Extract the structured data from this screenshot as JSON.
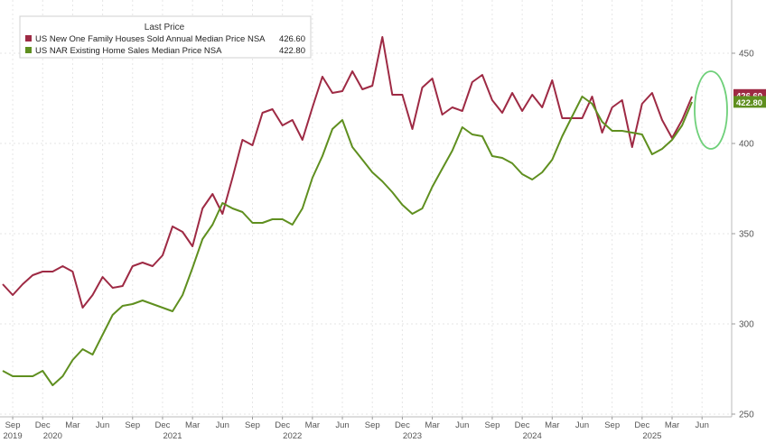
{
  "chart_data": {
    "type": "line",
    "legend": {
      "title": "Last Price",
      "position": "top-left",
      "entries": [
        {
          "label": "US New One Family Houses Sold Annual Median Price NSA",
          "value": "426.60",
          "color": "#9e2a44"
        },
        {
          "label": "US NAR Existing Home Sales Median Price NSA",
          "value": "422.80",
          "color": "#5f8f1f"
        }
      ]
    },
    "y_axis": {
      "ticks": [
        "450",
        "400",
        "350",
        "300",
        "250"
      ],
      "range": [
        250,
        475
      ]
    },
    "x_axis": {
      "month_labels": [
        "Sep",
        "Dec",
        "Mar",
        "Jun",
        "Sep",
        "Dec",
        "Mar",
        "Jun",
        "Sep",
        "Dec",
        "Mar",
        "Jun",
        "Sep",
        "Dec",
        "Mar",
        "Jun",
        "Sep",
        "Dec",
        "Mar",
        "Jun",
        "Sep",
        "Dec",
        "Mar",
        "Jun"
      ],
      "year_labels": [
        "2019",
        "2020",
        "2021",
        "2022",
        "2023",
        "2024",
        "2025"
      ]
    },
    "end_labels": [
      "426.60",
      "422.80"
    ],
    "grid": true,
    "highlight": "ellipse around latest values",
    "series": [
      {
        "name": "US New One Family Houses Sold Annual Median Price NSA",
        "color": "#9e2a44",
        "x": [
          "2019-08",
          "2019-09",
          "2019-10",
          "2019-11",
          "2019-12",
          "2020-01",
          "2020-02",
          "2020-03",
          "2020-04",
          "2020-05",
          "2020-06",
          "2020-07",
          "2020-08",
          "2020-09",
          "2020-10",
          "2020-11",
          "2020-12",
          "2021-01",
          "2021-02",
          "2021-03",
          "2021-04",
          "2021-05",
          "2021-06",
          "2021-07",
          "2021-08",
          "2021-09",
          "2021-10",
          "2021-11",
          "2021-12",
          "2022-01",
          "2022-02",
          "2022-03",
          "2022-04",
          "2022-05",
          "2022-06",
          "2022-07",
          "2022-08",
          "2022-09",
          "2022-10",
          "2022-11",
          "2022-12",
          "2023-01",
          "2023-02",
          "2023-03",
          "2023-04",
          "2023-05",
          "2023-06",
          "2023-07",
          "2023-08",
          "2023-09",
          "2023-10",
          "2023-11",
          "2023-12",
          "2024-01",
          "2024-02",
          "2024-03",
          "2024-04",
          "2024-05",
          "2024-06",
          "2024-07",
          "2024-08",
          "2024-09",
          "2024-10",
          "2024-11",
          "2024-12",
          "2025-01",
          "2025-02",
          "2025-03",
          "2025-04",
          "2025-05"
        ],
        "values": [
          322,
          316,
          322,
          327,
          329,
          329,
          332,
          329,
          309,
          316,
          326,
          320,
          321,
          332,
          334,
          332,
          338,
          354,
          351,
          343,
          364,
          372,
          361,
          381,
          402,
          399,
          417,
          419,
          410,
          413,
          402,
          420,
          437,
          428,
          429,
          440,
          430,
          432,
          459,
          427,
          427,
          408,
          431,
          436,
          416,
          420,
          418,
          434,
          438,
          424,
          417,
          428,
          418,
          427,
          420,
          435,
          414,
          414,
          414,
          426,
          406,
          420,
          424,
          398,
          422,
          428,
          413,
          403,
          413,
          426
        ]
      },
      {
        "name": "US NAR Existing Home Sales Median Price NSA",
        "color": "#5f8f1f",
        "x": [
          "2019-08",
          "2019-09",
          "2019-10",
          "2019-11",
          "2019-12",
          "2020-01",
          "2020-02",
          "2020-03",
          "2020-04",
          "2020-05",
          "2020-06",
          "2020-07",
          "2020-08",
          "2020-09",
          "2020-10",
          "2020-11",
          "2020-12",
          "2021-01",
          "2021-02",
          "2021-03",
          "2021-04",
          "2021-05",
          "2021-06",
          "2021-07",
          "2021-08",
          "2021-09",
          "2021-10",
          "2021-11",
          "2021-12",
          "2022-01",
          "2022-02",
          "2022-03",
          "2022-04",
          "2022-05",
          "2022-06",
          "2022-07",
          "2022-08",
          "2022-09",
          "2022-10",
          "2022-11",
          "2022-12",
          "2023-01",
          "2023-02",
          "2023-03",
          "2023-04",
          "2023-05",
          "2023-06",
          "2023-07",
          "2023-08",
          "2023-09",
          "2023-10",
          "2023-11",
          "2023-12",
          "2024-01",
          "2024-02",
          "2024-03",
          "2024-04",
          "2024-05",
          "2024-06",
          "2024-07",
          "2024-08",
          "2024-09",
          "2024-10",
          "2024-11",
          "2024-12",
          "2025-01",
          "2025-02",
          "2025-03",
          "2025-04",
          "2025-05"
        ],
        "values": [
          274,
          271,
          271,
          271,
          274,
          266,
          271,
          280,
          286,
          283,
          294,
          305,
          310,
          311,
          313,
          311,
          309,
          307,
          316,
          331,
          347,
          355,
          367,
          364,
          362,
          356,
          356,
          358,
          358,
          355,
          364,
          381,
          393,
          408,
          413,
          398,
          391,
          384,
          379,
          373,
          366,
          361,
          364,
          376,
          386,
          396,
          409,
          405,
          404,
          393,
          392,
          389,
          383,
          380,
          384,
          391,
          404,
          415,
          426,
          422,
          412,
          407,
          407,
          406,
          405,
          394,
          397,
          402,
          410,
          423
        ]
      }
    ]
  }
}
